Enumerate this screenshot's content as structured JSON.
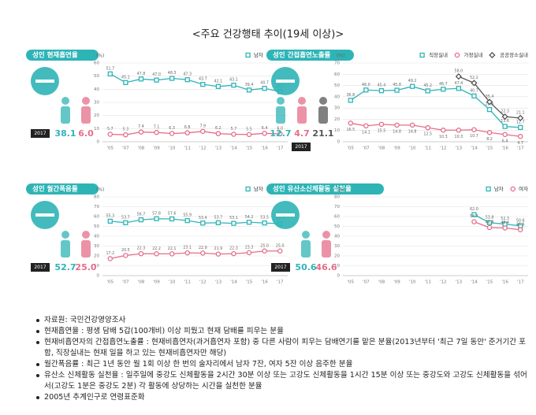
{
  "title": "<주요 건강행태 추이(19세 이상)>",
  "chart_data": [
    {
      "type": "line",
      "title": "성인 현재흡연율",
      "y_label": "(%)",
      "highlight_label": "2017",
      "legend": "top-right",
      "categories": [
        "'05",
        "'07",
        "'08",
        "'09",
        "'10",
        "'11",
        "'12",
        "'13",
        "'14",
        "'15",
        "'16",
        "'17"
      ],
      "ylim": [
        0,
        60
      ],
      "yticks": [
        0,
        10,
        20,
        30,
        40,
        50,
        60
      ],
      "series": [
        {
          "name": "남자",
          "color": "#2fb4b6",
          "marker": "square",
          "values": [
            51.7,
            45.1,
            47.8,
            47.0,
            48.3,
            47.3,
            43.7,
            42.1,
            43.1,
            39.4,
            40.7,
            38.1
          ],
          "value_labels": [
            "51.7",
            "45.1",
            "47.8",
            "47.0",
            "48.3",
            "47.3",
            "43.7",
            "42.1",
            "43.1",
            "39.4",
            "40.7",
            "38.1"
          ]
        },
        {
          "name": "여자",
          "color": "#e56d8a",
          "marker": "circle",
          "values": [
            5.7,
            5.3,
            7.4,
            7.1,
            6.3,
            6.8,
            7.9,
            6.2,
            5.7,
            5.5,
            6.4,
            6.0
          ],
          "value_labels": [
            "5.7",
            "5.3",
            "7.4",
            "7.1",
            "6.3",
            "6.8",
            "7.9",
            "6.2",
            "5.7",
            "5.5",
            "6.4",
            "6.0"
          ]
        }
      ]
    },
    {
      "type": "line",
      "title": "성인 간접흡연노출률",
      "y_label": "(%)",
      "highlight_label": "2017",
      "legend": "top-right",
      "categories": [
        "'05",
        "'07",
        "'08",
        "'09",
        "'10",
        "'11",
        "'12",
        "'13",
        "'14",
        "'15",
        "'16",
        "'17"
      ],
      "ylim": [
        0,
        70
      ],
      "yticks": [
        0,
        10,
        20,
        30,
        40,
        50,
        60,
        70
      ],
      "series": [
        {
          "name": "직장실내",
          "color": "#2fb4b6",
          "marker": "square",
          "values": [
            36.8,
            46.0,
            45.4,
            45.8,
            49.2,
            45.2,
            46.7,
            47.4,
            40.7,
            28.6,
            13.6,
            12.7
          ],
          "value_labels": [
            "36.8",
            "46.0",
            "45.4",
            "45.8",
            "49.2",
            "45.2",
            "46.7",
            "47.4",
            "40.7",
            "28.6",
            "13.6",
            "12.7"
          ]
        },
        {
          "name": "가정실내",
          "color": "#e56d8a",
          "marker": "circle",
          "values": [
            16.5,
            14.1,
            15.5,
            14.8,
            14.8,
            12.5,
            10.3,
            10.3,
            10.7,
            8.2,
            6.4,
            4.7
          ],
          "value_labels": [
            "16.5",
            "14.1",
            "15.5",
            "14.8",
            "14.8",
            "12.5",
            "10.3",
            "10.3",
            "10.7",
            "8.2",
            "6.4",
            "4.7"
          ]
        },
        {
          "name": "공공장소실내",
          "color": "#555555",
          "marker": "diamond",
          "values": [
            null,
            null,
            null,
            null,
            null,
            null,
            null,
            58.0,
            52.2,
            35.4,
            22.3,
            21.1
          ],
          "value_labels": [
            null,
            null,
            null,
            null,
            null,
            null,
            null,
            "58.0",
            "52.2",
            "35.4",
            "22.3",
            "21.1"
          ]
        }
      ]
    },
    {
      "type": "line",
      "title": "성인 월간폭음률",
      "y_label": "(%)",
      "highlight_label": "2017",
      "legend": "top-right",
      "categories": [
        "'05",
        "'07",
        "'08",
        "'09",
        "'10",
        "'11",
        "'12",
        "'13",
        "'14",
        "'15",
        "'16",
        "'17"
      ],
      "ylim": [
        0,
        80
      ],
      "yticks": [
        0,
        10,
        20,
        30,
        40,
        50,
        60,
        70,
        80
      ],
      "series": [
        {
          "name": "남자",
          "color": "#2fb4b6",
          "marker": "square",
          "values": [
            55.3,
            53.7,
            56.7,
            57.8,
            57.6,
            55.9,
            53.4,
            53.7,
            53.1,
            54.2,
            53.5,
            52.7
          ],
          "value_labels": [
            "55.3",
            "53.7",
            "56.7",
            "57.8",
            "57.6",
            "55.9",
            "53.4",
            "53.7",
            "53.1",
            "54.2",
            "53.5",
            "52.7"
          ]
        },
        {
          "name": "여자",
          "color": "#e56d8a",
          "marker": "circle",
          "values": [
            17.2,
            20.5,
            22.3,
            22.2,
            22.1,
            23.1,
            22.9,
            21.9,
            22.3,
            23.3,
            25.0,
            25.0
          ],
          "value_labels": [
            "17.2",
            "20.5",
            "22.3",
            "22.2",
            "22.1",
            "23.1",
            "22.9",
            "21.9",
            "22.3",
            "23.3",
            "25.0",
            "25.0"
          ]
        }
      ]
    },
    {
      "type": "line",
      "title": "성인 유산소신체활동 실천율",
      "y_label": "(%)",
      "highlight_label": "2017",
      "legend": "top-right",
      "categories": [
        "'05",
        "'07",
        "'08",
        "'09",
        "'10",
        "'11",
        "'12",
        "'13",
        "'14",
        "'15",
        "'16",
        "'17"
      ],
      "ylim": [
        0,
        80
      ],
      "yticks": [
        0,
        10,
        20,
        30,
        40,
        50,
        60,
        70,
        80
      ],
      "series": [
        {
          "name": "남자",
          "color": "#2fb4b6",
          "marker": "square",
          "values": [
            null,
            null,
            null,
            null,
            null,
            null,
            null,
            null,
            62.0,
            53.8,
            52.3,
            50.6
          ],
          "value_labels": [
            null,
            null,
            null,
            null,
            null,
            null,
            null,
            null,
            "62.0",
            "53.8",
            "52.3",
            "50.6"
          ]
        },
        {
          "name": "여자",
          "color": "#e56d8a",
          "marker": "circle",
          "values": [
            null,
            null,
            null,
            null,
            null,
            null,
            null,
            null,
            54.7,
            48.8,
            48.4,
            46.6
          ],
          "value_labels": [
            null,
            null,
            null,
            null,
            null,
            null,
            null,
            null,
            "54.7",
            "48.8",
            "48.4",
            "46.6"
          ]
        }
      ]
    }
  ],
  "notes": [
    "자료원: 국민건강영양조사",
    "현재흡연율 : 평생 담배 5갑(100개비) 이상 피웠고 현재 담배를 피우는 분율",
    "현재비흡연자의 간접흡연노출률 : 현재비흡연자(과거흡연자 포함) 중 다른 사람이 피우는 담배연기를 맡은 분율(2013년부터 '최근 7일 동안' 준거기간 포함, 직장실내는 현재 일을 하고 있는 현재비흡연자만 해당)",
    "월간폭음률 : 최근 1년 동안 월 1회 이상 한 번의 술자리에서 남자 7잔, 여자 5잔 이상 음주한 분율",
    "유산소 신체활동 실천율 : 일주일에 중강도 신체활동을 2시간 30분 이상 또는 고강도 신체활동을 1시간 15분 이상 또는 중강도와 고강도 신체활동을 섞어서(고강도 1분은 중강도 2분) 각 활동에 상당하는 시간을 실천한 분율",
    "2005년 추계인구로 연령표준화"
  ]
}
